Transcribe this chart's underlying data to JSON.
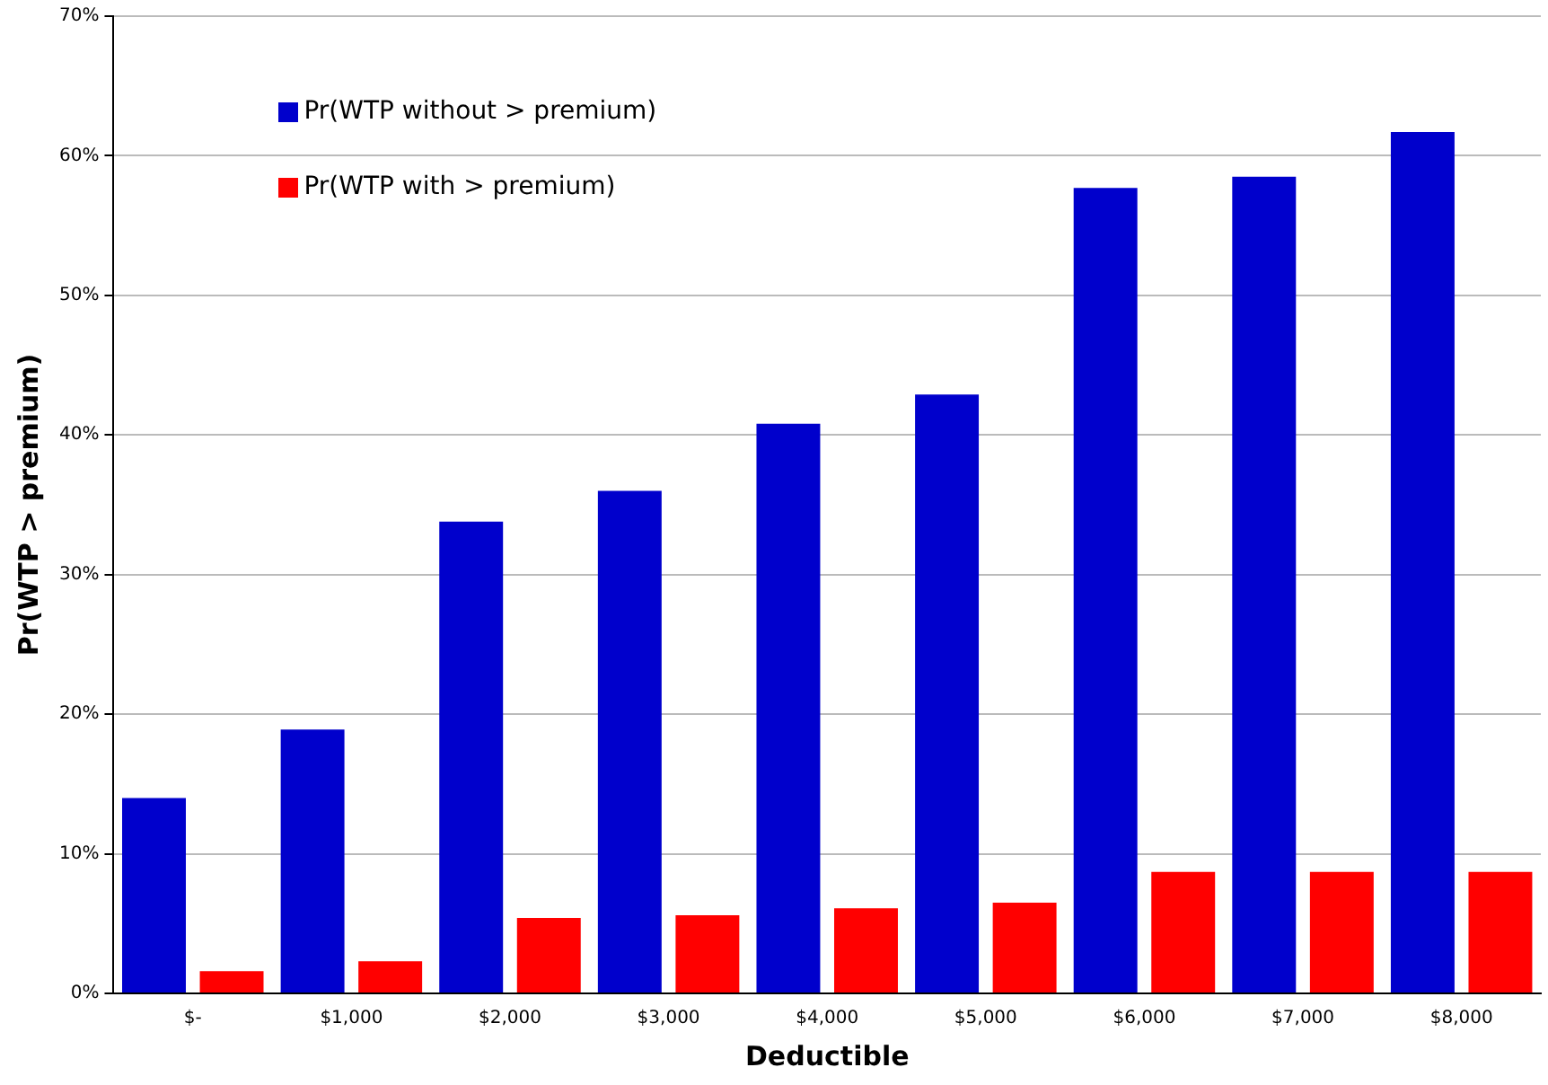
{
  "chart_data": {
    "type": "bar",
    "xlabel": "Deductible",
    "ylabel": "Pr(WTP > premium)",
    "categories": [
      "$-",
      "$1,000",
      "$2,000",
      "$3,000",
      "$4,000",
      "$5,000",
      "$6,000",
      "$7,000",
      "$8,000"
    ],
    "series": [
      {
        "name": "Pr(WTP without > premium)",
        "color": "#0000cc",
        "values": [
          14.0,
          18.9,
          33.8,
          36.0,
          40.8,
          42.9,
          57.7,
          58.5,
          61.7
        ]
      },
      {
        "name": "Pr(WTP with > premium)",
        "color": "#ff0000",
        "values": [
          1.6,
          2.3,
          5.4,
          5.6,
          6.1,
          6.5,
          8.7,
          8.7,
          8.7
        ]
      }
    ],
    "ylim": [
      0,
      70
    ],
    "yticks": [
      {
        "value": 0,
        "label": "0%"
      },
      {
        "value": 10,
        "label": "10%"
      },
      {
        "value": 20,
        "label": "20%"
      },
      {
        "value": 30,
        "label": "30%"
      },
      {
        "value": 40,
        "label": "40%"
      },
      {
        "value": 50,
        "label": "50%"
      },
      {
        "value": 60,
        "label": "60%"
      },
      {
        "value": 70,
        "label": "70%"
      }
    ],
    "grid": "y",
    "legend": "top left"
  }
}
